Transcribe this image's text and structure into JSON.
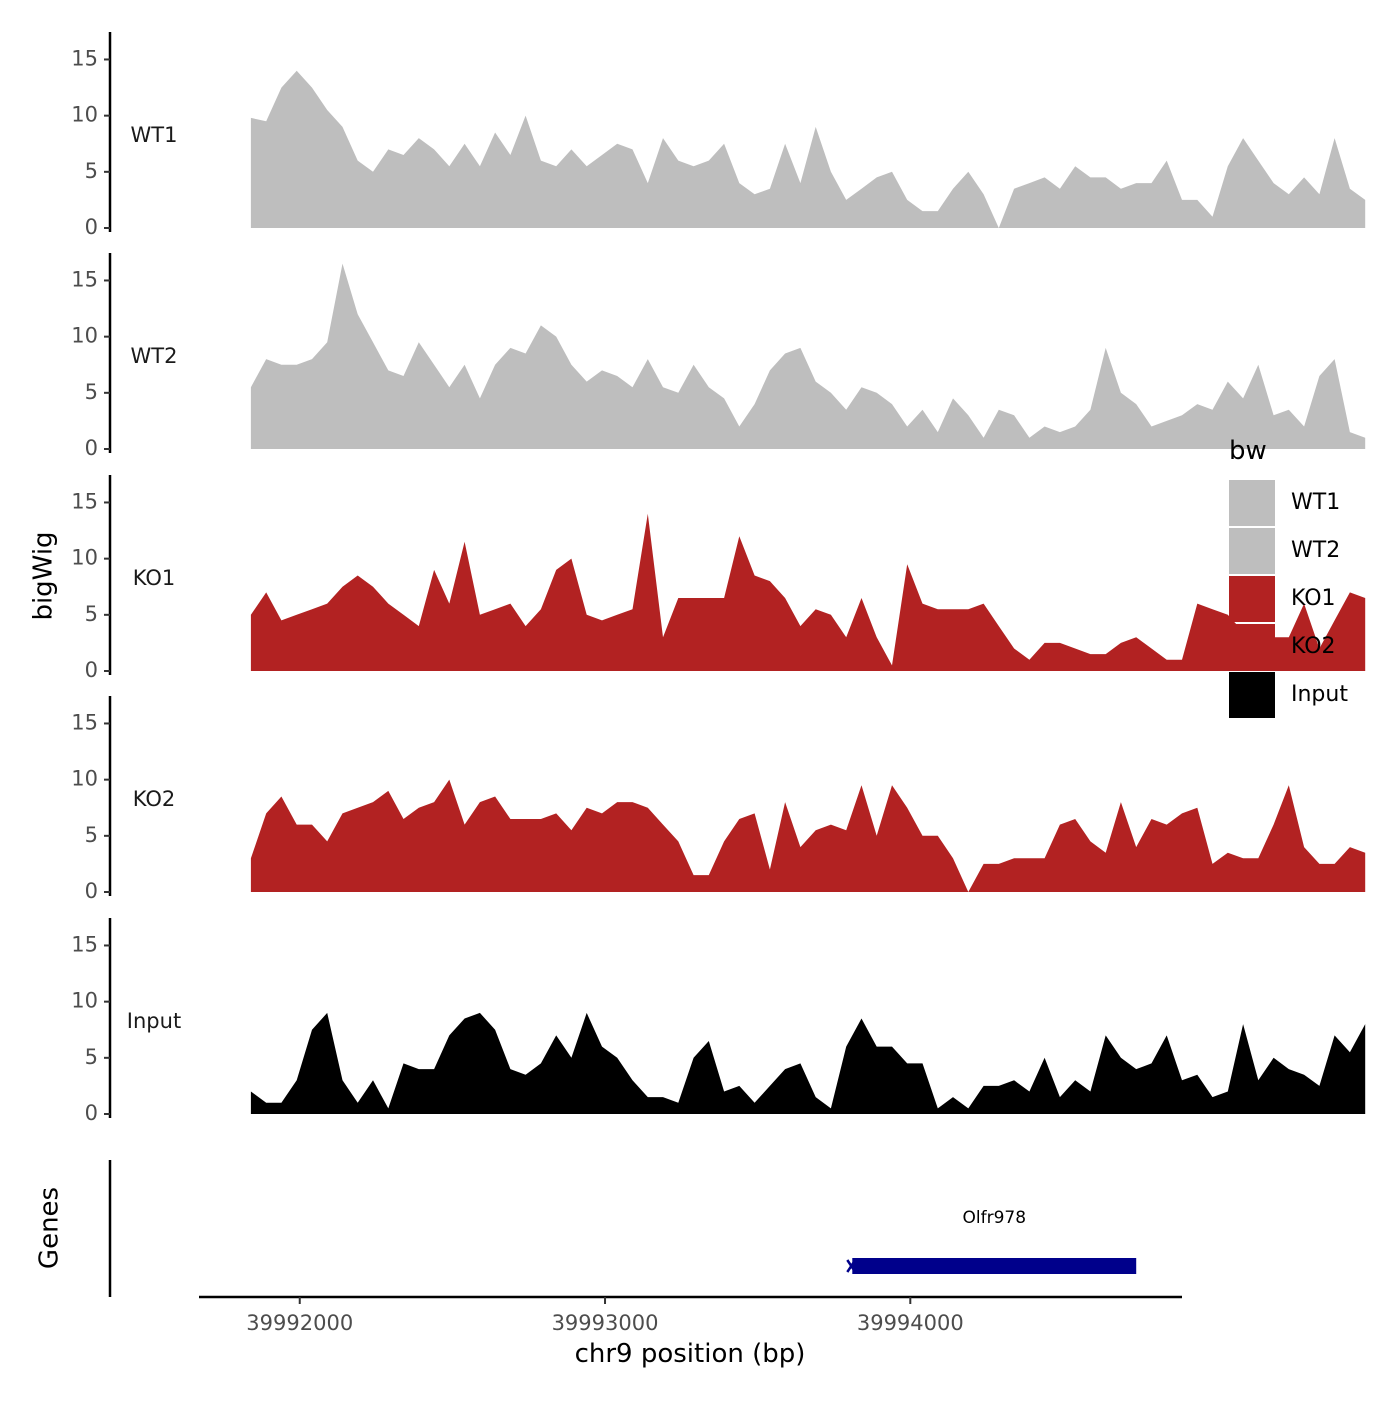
{
  "chart_data": {
    "type": "area",
    "title": "",
    "xlabel": "chr9 position (bp)",
    "ylabel": "bigWig",
    "genes_track_label": "Genes",
    "xlim": [
      39991670,
      39994890
    ],
    "x_ticks": [
      39992000,
      39993000,
      39994000
    ],
    "x_tick_labels": [
      "39992000",
      "39993000",
      "39994000"
    ],
    "ylim": [
      0,
      17
    ],
    "y_ticks": [
      0,
      5,
      10,
      15
    ],
    "y_tick_labels": [
      "0",
      "5",
      "10",
      "15"
    ],
    "legend": {
      "title": "bw",
      "position": "right",
      "entries": [
        {
          "label": "WT1",
          "color": "#bebebe"
        },
        {
          "label": "WT2",
          "color": "#bebebe"
        },
        {
          "label": "KO1",
          "color": "#b22222"
        },
        {
          "label": "KO2",
          "color": "#b22222"
        },
        {
          "label": "Input",
          "color": "#000000"
        }
      ]
    },
    "x_start": 39991840,
    "x_step": 50,
    "series": [
      {
        "name": "WT1",
        "color": "#bebebe",
        "values": [
          9.8,
          9.5,
          12.5,
          14.0,
          12.5,
          10.5,
          9.0,
          6.0,
          5.0,
          7.0,
          6.5,
          8.0,
          7.0,
          5.5,
          7.5,
          5.5,
          8.5,
          6.5,
          10.0,
          6.0,
          5.5,
          7.0,
          5.5,
          6.5,
          7.5,
          7.0,
          4.0,
          8.0,
          6.0,
          5.5,
          6.0,
          7.5,
          4.0,
          3.0,
          3.5,
          7.5,
          4.0,
          9.0,
          5.0,
          2.5,
          3.5,
          4.5,
          5.0,
          2.5,
          1.5,
          1.5,
          3.5,
          5.0,
          3.0,
          0.0,
          3.5,
          4.0,
          4.5,
          3.5,
          5.5,
          4.5,
          4.5,
          3.5,
          4.0,
          4.0,
          6.0,
          2.5,
          2.5,
          1.0,
          5.5,
          8.0,
          6.0,
          4.0,
          3.0,
          4.5,
          3.0,
          8.0,
          3.5,
          2.5
        ]
      },
      {
        "name": "WT2",
        "color": "#bebebe",
        "values": [
          5.5,
          8.0,
          7.5,
          7.5,
          8.0,
          9.5,
          16.5,
          12.0,
          9.5,
          7.0,
          6.5,
          9.5,
          7.5,
          5.5,
          7.5,
          4.5,
          7.5,
          9.0,
          8.5,
          11.0,
          10.0,
          7.5,
          6.0,
          7.0,
          6.5,
          5.5,
          8.0,
          5.5,
          5.0,
          7.5,
          5.5,
          4.5,
          2.0,
          4.0,
          7.0,
          8.5,
          9.0,
          6.0,
          5.0,
          3.5,
          5.5,
          5.0,
          4.0,
          2.0,
          3.5,
          1.5,
          4.5,
          3.0,
          1.0,
          3.5,
          3.0,
          1.0,
          2.0,
          1.5,
          2.0,
          3.5,
          9.0,
          5.0,
          4.0,
          2.0,
          2.5,
          3.0,
          4.0,
          3.5,
          6.0,
          4.5,
          7.5,
          3.0,
          3.5,
          2.0,
          6.5,
          8.0,
          1.5,
          1.0
        ]
      },
      {
        "name": "KO1",
        "color": "#b22222",
        "values": [
          5.0,
          7.0,
          4.5,
          5.0,
          5.5,
          6.0,
          7.5,
          8.5,
          7.5,
          6.0,
          5.0,
          4.0,
          9.0,
          6.0,
          11.5,
          5.0,
          5.5,
          6.0,
          4.0,
          5.5,
          9.0,
          10.0,
          5.0,
          4.5,
          5.0,
          5.5,
          14.0,
          3.0,
          6.5,
          6.5,
          6.5,
          6.5,
          12.0,
          8.5,
          8.0,
          6.5,
          4.0,
          5.5,
          5.0,
          3.0,
          6.5,
          3.0,
          0.5,
          9.5,
          6.0,
          5.5,
          5.5,
          5.5,
          6.0,
          4.0,
          2.0,
          1.0,
          2.5,
          2.5,
          2.0,
          1.5,
          1.5,
          2.5,
          3.0,
          2.0,
          1.0,
          1.0,
          6.0,
          5.5,
          5.0,
          3.5,
          3.5,
          3.0,
          3.0,
          6.0,
          2.0,
          4.5,
          7.0,
          6.5
        ]
      },
      {
        "name": "KO2",
        "color": "#b22222",
        "values": [
          3.0,
          7.0,
          8.5,
          6.0,
          6.0,
          4.5,
          7.0,
          7.5,
          8.0,
          9.0,
          6.5,
          7.5,
          8.0,
          10.0,
          6.0,
          8.0,
          8.5,
          6.5,
          6.5,
          6.5,
          7.0,
          5.5,
          7.5,
          7.0,
          8.0,
          8.0,
          7.5,
          6.0,
          4.5,
          1.5,
          1.5,
          4.5,
          6.5,
          7.0,
          2.0,
          8.0,
          4.0,
          5.5,
          6.0,
          5.5,
          9.5,
          5.0,
          9.5,
          7.5,
          5.0,
          5.0,
          3.0,
          0.0,
          2.5,
          2.5,
          3.0,
          3.0,
          3.0,
          6.0,
          6.5,
          4.5,
          3.5,
          8.0,
          4.0,
          6.5,
          6.0,
          7.0,
          7.5,
          2.5,
          3.5,
          3.0,
          3.0,
          6.0,
          9.5,
          4.0,
          2.5,
          2.5,
          4.0,
          3.5
        ]
      },
      {
        "name": "Input",
        "color": "#000000",
        "values": [
          2.0,
          1.0,
          1.0,
          3.0,
          7.5,
          9.0,
          3.0,
          1.0,
          3.0,
          0.5,
          4.5,
          4.0,
          4.0,
          7.0,
          8.5,
          9.0,
          7.5,
          4.0,
          3.5,
          4.5,
          7.0,
          5.0,
          9.0,
          6.0,
          5.0,
          3.0,
          1.5,
          1.5,
          1.0,
          5.0,
          6.5,
          2.0,
          2.5,
          1.0,
          2.5,
          4.0,
          4.5,
          1.5,
          0.5,
          6.0,
          8.5,
          6.0,
          6.0,
          4.5,
          4.5,
          0.5,
          1.5,
          0.5,
          2.5,
          2.5,
          3.0,
          2.0,
          5.0,
          1.5,
          3.0,
          2.0,
          7.0,
          5.0,
          4.0,
          4.5,
          7.0,
          3.0,
          3.5,
          1.5,
          2.0,
          8.0,
          3.0,
          5.0,
          4.0,
          3.5,
          2.5,
          7.0,
          5.5,
          8.0
        ]
      }
    ],
    "genes": [
      {
        "name": "Olfr978",
        "start": 39993810,
        "end": 39994740,
        "strand": "-",
        "color": "#00008b"
      }
    ]
  }
}
